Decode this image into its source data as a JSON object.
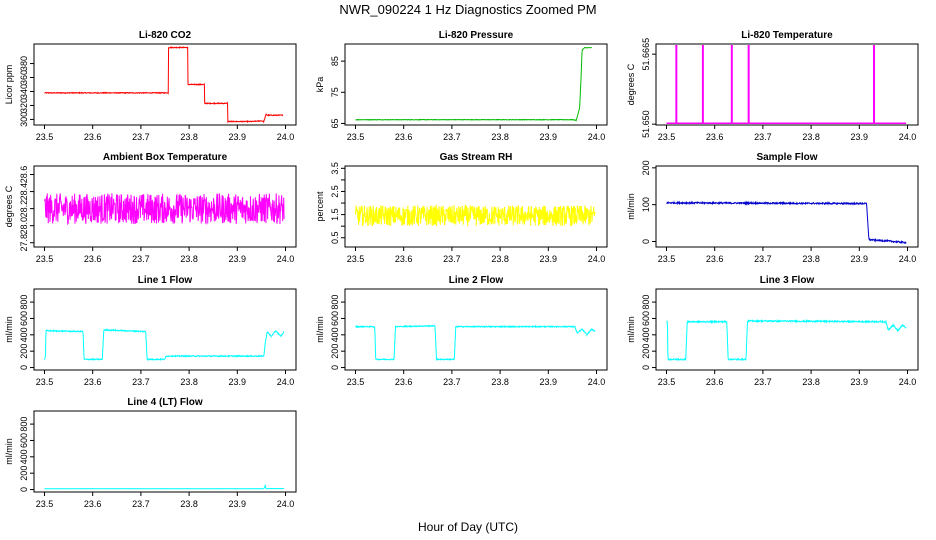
{
  "figure": {
    "title": "NWR_090224  1 Hz Diagnostics Zoomed PM",
    "xlabel": "Hour of Day (UTC)"
  },
  "chart_data": [
    {
      "type": "line",
      "title": "Li-820 CO2",
      "ylabel": "Licor ppm",
      "color": "#ff0000",
      "xlim": [
        23.5,
        24.0
      ],
      "ylim": [
        292,
        408
      ],
      "xticks": [
        "23.5",
        "23.6",
        "23.7",
        "23.8",
        "23.9",
        "24.0"
      ],
      "yticks": [
        {
          "v": 300,
          "label": "300"
        },
        {
          "v": 320,
          "label": "320"
        },
        {
          "v": 340,
          "label": "340"
        },
        {
          "v": 360,
          "label": "360"
        },
        {
          "v": 380,
          "label": "380"
        }
      ],
      "series": [
        {
          "noise": 0.6,
          "x": [
            23.5,
            23.757,
            23.757,
            23.797,
            23.797,
            23.832,
            23.832,
            23.88,
            23.88,
            23.93,
            23.93,
            23.95,
            23.955,
            23.96,
            23.962,
            23.995
          ],
          "y": [
            338,
            338,
            403,
            403,
            350,
            350,
            323,
            323,
            297,
            297,
            297,
            298,
            297,
            308,
            306,
            306
          ]
        }
      ]
    },
    {
      "type": "line",
      "title": "Li-820 Pressure",
      "ylabel": "kPa",
      "color": "#00bb00",
      "xlim": [
        23.5,
        24.0
      ],
      "ylim": [
        64.5,
        90.5
      ],
      "xticks": [
        "23.5",
        "23.6",
        "23.7",
        "23.8",
        "23.9",
        "24.0"
      ],
      "yticks": [
        {
          "v": 65,
          "label": "65"
        },
        {
          "v": 75,
          "label": "75"
        },
        {
          "v": 85,
          "label": "85"
        }
      ],
      "series": [
        {
          "noise": 0.08,
          "x": [
            23.5,
            23.95,
            23.958,
            23.965,
            23.968,
            23.97,
            23.975,
            23.99
          ],
          "y": [
            66.2,
            66.2,
            66.0,
            70,
            80,
            88.5,
            89.3,
            89.3
          ]
        }
      ]
    },
    {
      "type": "line",
      "title": "Li-820 Temperature",
      "ylabel": "degrees C",
      "color": "#ff00ff",
      "xlim": [
        23.5,
        24.0
      ],
      "ylim": [
        51.6498,
        51.6689
      ],
      "xticks": [
        "23.5",
        "23.6",
        "23.7",
        "23.8",
        "23.9",
        "24.0"
      ],
      "yticks": [
        {
          "v": 51.65,
          "label": "51.650"
        },
        {
          "v": 51.6665,
          "label": "51.6665"
        }
      ],
      "series": [
        {
          "x": [
            23.5,
            23.52,
            23.52,
            23.521,
            23.521,
            23.575,
            23.575,
            23.576,
            23.576,
            23.635,
            23.635,
            23.636,
            23.636,
            23.67,
            23.67,
            23.671,
            23.671,
            23.93,
            23.93,
            23.931,
            23.931,
            23.997
          ],
          "y": [
            51.6502,
            51.6502,
            51.6685,
            51.6685,
            51.6502,
            51.6502,
            51.6685,
            51.6685,
            51.6502,
            51.6502,
            51.6685,
            51.6685,
            51.6502,
            51.6502,
            51.6685,
            51.6685,
            51.6502,
            51.6502,
            51.6685,
            51.6685,
            51.6502,
            51.6502
          ]
        }
      ]
    },
    {
      "type": "line",
      "title": "Ambient Box Temperature",
      "ylabel": "degrees C",
      "color": "#ff00ff",
      "xlim": [
        23.5,
        24.0
      ],
      "ylim": [
        27.75,
        28.7
      ],
      "xticks": [
        "23.5",
        "23.6",
        "23.7",
        "23.8",
        "23.9",
        "24.0"
      ],
      "yticks": [
        {
          "v": 27.8,
          "label": "27.8"
        },
        {
          "v": 28.0,
          "label": "28.0"
        },
        {
          "v": 28.2,
          "label": "28.2"
        },
        {
          "v": 28.4,
          "label": "28.4"
        },
        {
          "v": 28.6,
          "label": "28.6"
        }
      ],
      "series": [
        {
          "noise": 0.18,
          "x": [
            23.5,
            23.997
          ],
          "y": [
            28.2,
            28.2
          ]
        }
      ]
    },
    {
      "type": "line",
      "title": "Gas Stream RH",
      "ylabel": "percent",
      "color": "#ffff00",
      "xlim": [
        23.5,
        24.0
      ],
      "ylim": [
        0.1,
        3.6
      ],
      "xticks": [
        "23.5",
        "23.6",
        "23.7",
        "23.8",
        "23.9",
        "24.0"
      ],
      "yticks": [
        {
          "v": 0.5,
          "label": "0.5"
        },
        {
          "v": 1.5,
          "label": "1.5"
        },
        {
          "v": 2.5,
          "label": "2.5"
        },
        {
          "v": 3.5,
          "label": "3.5"
        }
      ],
      "yticks_minor": [
        1.0,
        2.0,
        3.0
      ],
      "series": [
        {
          "noise": 0.45,
          "x": [
            23.5,
            23.997
          ],
          "y": [
            1.45,
            1.45
          ]
        }
      ]
    },
    {
      "type": "line",
      "title": "Sample Flow",
      "ylabel": "ml/min",
      "color": "#0000cc",
      "xlim": [
        23.5,
        24.0
      ],
      "ylim": [
        -15,
        205
      ],
      "xticks": [
        "23.5",
        "23.6",
        "23.7",
        "23.8",
        "23.9",
        "24.0"
      ],
      "yticks": [
        {
          "v": 0,
          "label": "0"
        },
        {
          "v": 100,
          "label": "100"
        },
        {
          "v": 200,
          "label": "200"
        }
      ],
      "series": [
        {
          "noise": 2,
          "x": [
            23.5,
            23.913,
            23.915,
            23.92,
            23.97,
            23.997
          ],
          "y": [
            105,
            103,
            103,
            5,
            0,
            -3
          ]
        }
      ]
    },
    {
      "type": "line",
      "title": "Line 1 Flow",
      "ylabel": "ml/min",
      "color": "#00ffff",
      "xlim": [
        23.5,
        24.0
      ],
      "ylim": [
        -30,
        960
      ],
      "xticks": [
        "23.5",
        "23.6",
        "23.7",
        "23.8",
        "23.9",
        "24.0"
      ],
      "yticks": [
        {
          "v": 0,
          "label": "0"
        },
        {
          "v": 200,
          "label": "200"
        },
        {
          "v": 400,
          "label": "400"
        },
        {
          "v": 600,
          "label": "600"
        },
        {
          "v": 800,
          "label": "800"
        }
      ],
      "series": [
        {
          "noise": 6,
          "x": [
            23.5,
            23.502,
            23.503,
            23.58,
            23.582,
            23.62,
            23.623,
            23.71,
            23.713,
            23.75,
            23.752,
            23.955,
            23.958,
            23.962,
            23.97,
            23.98,
            23.99,
            23.997
          ],
          "y": [
            100,
            130,
            450,
            440,
            100,
            100,
            460,
            440,
            100,
            100,
            140,
            140,
            300,
            440,
            380,
            450,
            380,
            440
          ]
        }
      ]
    },
    {
      "type": "line",
      "title": "Line 2 Flow",
      "ylabel": "ml/min",
      "color": "#00ffff",
      "xlim": [
        23.5,
        24.0
      ],
      "ylim": [
        -30,
        960
      ],
      "xticks": [
        "23.5",
        "23.6",
        "23.7",
        "23.8",
        "23.9",
        "24.0"
      ],
      "yticks": [
        {
          "v": 0,
          "label": "0"
        },
        {
          "v": 200,
          "label": "200"
        },
        {
          "v": 400,
          "label": "400"
        },
        {
          "v": 600,
          "label": "600"
        },
        {
          "v": 800,
          "label": "800"
        }
      ],
      "series": [
        {
          "noise": 6,
          "x": [
            23.5,
            23.54,
            23.542,
            23.58,
            23.583,
            23.665,
            23.668,
            23.705,
            23.708,
            23.955,
            23.96,
            23.97,
            23.98,
            23.99,
            23.997
          ],
          "y": [
            500,
            500,
            100,
            100,
            500,
            510,
            100,
            100,
            500,
            500,
            420,
            470,
            400,
            470,
            440
          ]
        }
      ]
    },
    {
      "type": "line",
      "title": "Line 3 Flow",
      "ylabel": "ml/min",
      "color": "#00ffff",
      "xlim": [
        23.5,
        24.0
      ],
      "ylim": [
        -30,
        960
      ],
      "xticks": [
        "23.5",
        "23.6",
        "23.7",
        "23.8",
        "23.9",
        "24.0"
      ],
      "yticks": [
        {
          "v": 0,
          "label": "0"
        },
        {
          "v": 200,
          "label": "200"
        },
        {
          "v": 400,
          "label": "400"
        },
        {
          "v": 600,
          "label": "600"
        },
        {
          "v": 800,
          "label": "800"
        }
      ],
      "series": [
        {
          "noise": 8,
          "x": [
            23.5,
            23.502,
            23.503,
            23.54,
            23.543,
            23.625,
            23.628,
            23.665,
            23.668,
            23.955,
            23.96,
            23.97,
            23.98,
            23.99,
            23.997
          ],
          "y": [
            560,
            560,
            100,
            100,
            560,
            560,
            100,
            100,
            570,
            560,
            460,
            520,
            450,
            520,
            480
          ]
        }
      ]
    },
    {
      "type": "line",
      "title": "Line 4 (LT) Flow",
      "ylabel": "ml/min",
      "color": "#00ffff",
      "xlim": [
        23.5,
        24.0
      ],
      "ylim": [
        -30,
        960
      ],
      "xticks": [
        "23.5",
        "23.6",
        "23.7",
        "23.8",
        "23.9",
        "24.0"
      ],
      "yticks": [
        {
          "v": 0,
          "label": "0"
        },
        {
          "v": 200,
          "label": "200"
        },
        {
          "v": 400,
          "label": "400"
        },
        {
          "v": 600,
          "label": "600"
        },
        {
          "v": 800,
          "label": "800"
        }
      ],
      "series": [
        {
          "noise": 1,
          "x": [
            23.5,
            23.955,
            23.958,
            23.96,
            23.963,
            23.997
          ],
          "y": [
            10,
            10,
            50,
            10,
            12,
            12
          ]
        }
      ]
    }
  ]
}
